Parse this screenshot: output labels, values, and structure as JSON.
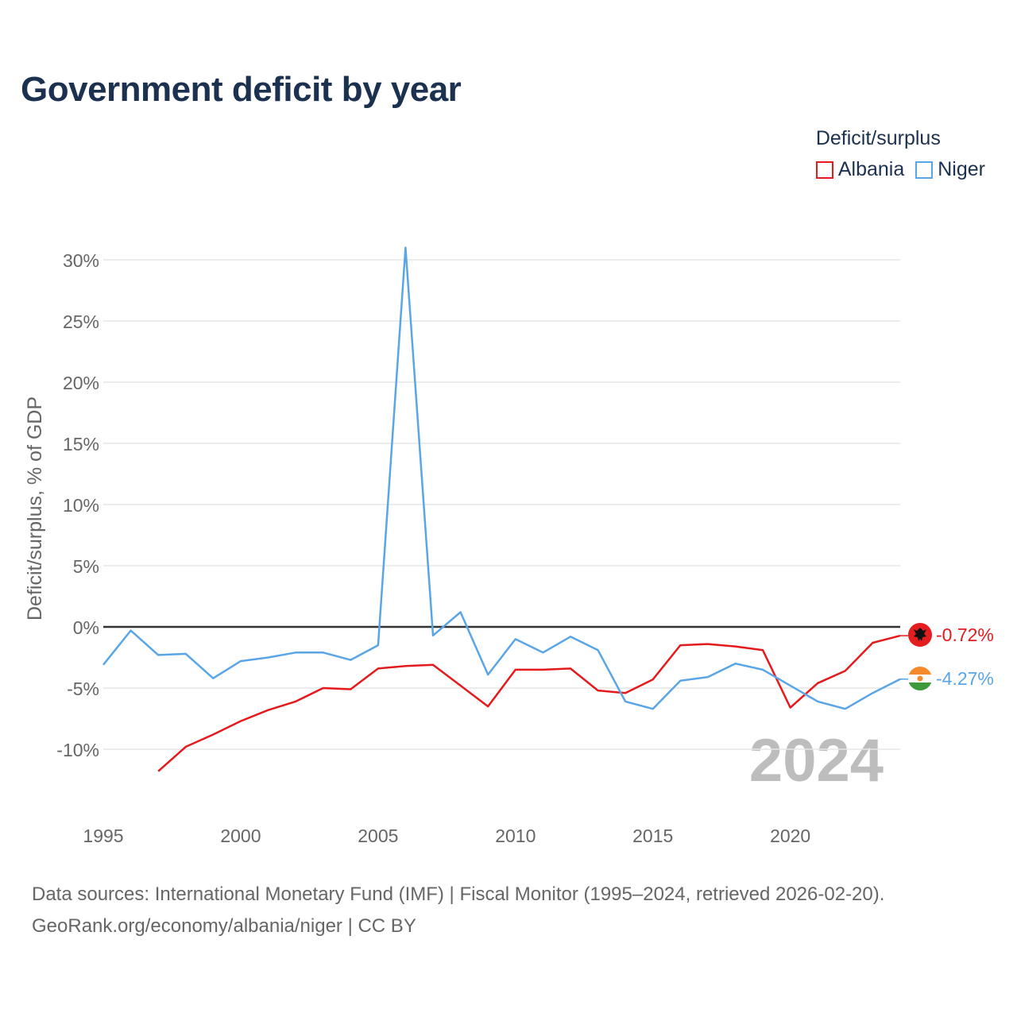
{
  "page": {
    "title": "Government deficit by year",
    "footer": {
      "sources": "Data sources: International Monetary Fund (IMF) | Fiscal Monitor (1995–2024, retrieved 2026-02-20).",
      "attribution": "GeoRank.org/economy/albania/niger | CC BY"
    }
  },
  "legend": {
    "title": "Deficit/surplus",
    "items": [
      {
        "label": "Albania",
        "color": "#e41a1c"
      },
      {
        "label": "Niger",
        "color": "#5aa5e6"
      }
    ]
  },
  "chart_data": {
    "type": "line",
    "title": "Government deficit by year",
    "xlabel": "",
    "ylabel": "Deficit/surplus, % of GDP",
    "xlim": [
      1995,
      2024
    ],
    "ylim": [
      -14,
      32
    ],
    "x_ticks": [
      1995,
      2000,
      2005,
      2010,
      2015,
      2020
    ],
    "y_ticks": [
      30,
      25,
      20,
      15,
      10,
      5,
      0,
      -5,
      -10
    ],
    "y_tick_labels": [
      "30%",
      "25%",
      "20%",
      "15%",
      "10%",
      "5%",
      "0%",
      "-5%",
      "-10%"
    ],
    "watermark_year": "2024",
    "series": [
      {
        "name": "Albania",
        "color": "#e41a1c",
        "flag": "albania-flag",
        "end_label": "-0.72%",
        "x": [
          1997,
          1998,
          1999,
          2000,
          2001,
          2002,
          2003,
          2004,
          2005,
          2006,
          2007,
          2008,
          2009,
          2010,
          2011,
          2012,
          2013,
          2014,
          2015,
          2016,
          2017,
          2018,
          2019,
          2020,
          2021,
          2022,
          2023,
          2024
        ],
        "values": [
          -11.8,
          -9.8,
          -8.8,
          -7.7,
          -6.8,
          -6.1,
          -5.0,
          -5.1,
          -3.4,
          -3.2,
          -3.1,
          -4.8,
          -6.5,
          -3.5,
          -3.5,
          -3.4,
          -5.2,
          -5.4,
          -4.3,
          -1.5,
          -1.4,
          -1.6,
          -1.9,
          -6.6,
          -4.6,
          -3.6,
          -1.3,
          -0.72
        ]
      },
      {
        "name": "Niger",
        "color": "#5aa5e6",
        "flag": "niger-flag",
        "end_label": "-4.27%",
        "x": [
          1995,
          1996,
          1997,
          1998,
          1999,
          2000,
          2001,
          2002,
          2003,
          2004,
          2005,
          2006,
          2007,
          2008,
          2009,
          2010,
          2011,
          2012,
          2013,
          2014,
          2015,
          2016,
          2017,
          2018,
          2019,
          2020,
          2021,
          2022,
          2023,
          2024
        ],
        "values": [
          -3.1,
          -0.3,
          -2.3,
          -2.2,
          -4.2,
          -2.8,
          -2.5,
          -2.1,
          -2.1,
          -2.7,
          -1.5,
          31.0,
          -0.7,
          1.2,
          -3.9,
          -1.0,
          -2.1,
          -0.8,
          -1.9,
          -6.1,
          -6.7,
          -4.4,
          -4.1,
          -3.0,
          -3.5,
          -4.8,
          -6.1,
          -6.7,
          -5.4,
          -4.27
        ]
      }
    ]
  }
}
